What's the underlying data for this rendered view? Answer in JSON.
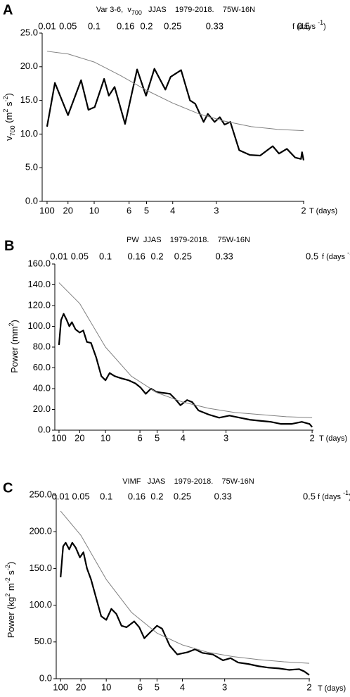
{
  "chart_data": [
    {
      "type": "line",
      "panel_label": "A",
      "title": [
        "Var 3-6,  v",
        "700",
        "   JJAS    1979-2018.    75W-16N"
      ],
      "y_label": [
        "v",
        "700",
        " (m",
        "2",
        " s",
        "-2",
        ")"
      ],
      "x_label": [
        "f (days ",
        "-1",
        ")"
      ],
      "x2_label": "T (days)",
      "xlim": [
        0,
        0.5
      ],
      "xticks": [
        0.01,
        0.05,
        0.1,
        0.16,
        0.2,
        0.25,
        0.33,
        0.5
      ],
      "x2ticks": [
        100,
        20,
        10,
        6,
        5,
        4,
        3,
        2
      ],
      "x2_scale": "reciprocal",
      "ylim": [
        0,
        25
      ],
      "yticks": [
        {
          "value": 0,
          "label": "0.0"
        },
        {
          "value": 5,
          "label": "5.0"
        },
        {
          "value": 10,
          "label": "10.0"
        },
        {
          "value": 15,
          "label": "15.0"
        },
        {
          "value": 20,
          "label": "20.0"
        },
        {
          "value": 25,
          "label": "25.0"
        }
      ],
      "series": [
        {
          "color": "#000000",
          "line_width": 2.2,
          "x": [
            0.01,
            0.025,
            0.05,
            0.075,
            0.089,
            0.101,
            0.119,
            0.128,
            0.139,
            0.159,
            0.182,
            0.199,
            0.215,
            0.236,
            0.246,
            0.266,
            0.283,
            0.293,
            0.309,
            0.317,
            0.33,
            0.34,
            0.349,
            0.36,
            0.377,
            0.397,
            0.417,
            0.441,
            0.453,
            0.468,
            0.484,
            0.495,
            0.497,
            0.5
          ],
          "values": [
            11.1,
            17.6,
            12.8,
            18.0,
            13.6,
            14.0,
            18.2,
            15.7,
            17.0,
            11.5,
            19.6,
            15.7,
            19.7,
            16.6,
            18.5,
            19.5,
            15.0,
            14.5,
            11.8,
            13.0,
            11.8,
            12.5,
            11.4,
            11.8,
            7.6,
            6.9,
            6.8,
            8.2,
            7.1,
            7.8,
            6.5,
            6.3,
            7.3,
            6.1
          ]
        },
        {
          "color": "#808080",
          "line_width": 1,
          "x": [
            0.01,
            0.05,
            0.1,
            0.15,
            0.2,
            0.25,
            0.3,
            0.35,
            0.4,
            0.45,
            0.5
          ],
          "values": [
            22.3,
            21.9,
            20.7,
            18.7,
            16.5,
            14.6,
            13.0,
            11.9,
            11.1,
            10.7,
            10.5
          ]
        }
      ]
    },
    {
      "type": "line",
      "panel_label": "B",
      "title": [
        "PW  JJAS    1979-2018.    75W-16N"
      ],
      "y_label": [
        "Power (mm",
        "2",
        ")"
      ],
      "x_label": [
        "f (days ",
        "-1",
        ")"
      ],
      "x2_label": "T (days)",
      "xlim": [
        0,
        0.5
      ],
      "xticks": [
        0.01,
        0.05,
        0.1,
        0.16,
        0.2,
        0.25,
        0.33,
        0.5
      ],
      "x2ticks": [
        100,
        20,
        10,
        6,
        5,
        4,
        3,
        2
      ],
      "x2_scale": "reciprocal",
      "ylim": [
        0,
        160
      ],
      "yticks": [
        {
          "value": 0,
          "label": "0.0"
        },
        {
          "value": 20,
          "label": "20.0"
        },
        {
          "value": 40,
          "label": "40.0"
        },
        {
          "value": 60,
          "label": "60.0"
        },
        {
          "value": 80,
          "label": "80.0"
        },
        {
          "value": 100,
          "label": "100.0"
        },
        {
          "value": 120,
          "label": "120.0"
        },
        {
          "value": 140,
          "label": "140.0"
        },
        {
          "value": 160,
          "label": "160.0"
        }
      ],
      "series": [
        {
          "color": "#000000",
          "line_width": 2.2,
          "x": [
            0.01,
            0.014,
            0.019,
            0.025,
            0.03,
            0.035,
            0.042,
            0.05,
            0.057,
            0.064,
            0.072,
            0.082,
            0.092,
            0.1,
            0.108,
            0.118,
            0.13,
            0.145,
            0.158,
            0.168,
            0.178,
            0.188,
            0.198,
            0.21,
            0.225,
            0.235,
            0.245,
            0.258,
            0.268,
            0.28,
            0.3,
            0.32,
            0.34,
            0.36,
            0.38,
            0.4,
            0.42,
            0.44,
            0.46,
            0.48,
            0.495,
            0.5
          ],
          "values": [
            82,
            106,
            112,
            106,
            100,
            104,
            97,
            94,
            96,
            85,
            84,
            70,
            52,
            48,
            55,
            52,
            50,
            48,
            45,
            41,
            35,
            40,
            37,
            36,
            35,
            30,
            24,
            29,
            27,
            19,
            15,
            12,
            14,
            12,
            10,
            9,
            8,
            6,
            6,
            8,
            6,
            3
          ]
        },
        {
          "color": "#808080",
          "line_width": 1,
          "x": [
            0.01,
            0.05,
            0.1,
            0.15,
            0.2,
            0.25,
            0.3,
            0.35,
            0.4,
            0.45,
            0.5
          ],
          "values": [
            142,
            122,
            80,
            52,
            36,
            27,
            21,
            17,
            15,
            13,
            12
          ]
        }
      ]
    },
    {
      "type": "line",
      "panel_label": "C",
      "title": [
        "VIMF   JJAS    1979-2018.    75W-16N"
      ],
      "y_label": [
        "Power (kg",
        "2",
        " m",
        "-2",
        " s",
        "-2",
        ")"
      ],
      "x_label": [
        "f (days ",
        "-1",
        ")"
      ],
      "x2_label": "T (days)",
      "xlim": [
        0,
        0.5
      ],
      "xticks": [
        0.01,
        0.05,
        0.1,
        0.16,
        0.2,
        0.25,
        0.33,
        0.5
      ],
      "x2ticks": [
        100,
        20,
        10,
        6,
        5,
        4,
        3,
        2
      ],
      "x2_scale": "reciprocal",
      "ylim": [
        0,
        250
      ],
      "yticks": [
        {
          "value": 0,
          "label": "0.0"
        },
        {
          "value": 50,
          "label": "50.0"
        },
        {
          "value": 100,
          "label": "100.0"
        },
        {
          "value": 150,
          "label": "150.0"
        },
        {
          "value": 200,
          "label": "200.0"
        },
        {
          "value": 250,
          "label": "250.0"
        }
      ],
      "series": [
        {
          "color": "#000000",
          "line_width": 2.2,
          "x": [
            0.01,
            0.015,
            0.02,
            0.027,
            0.033,
            0.04,
            0.048,
            0.055,
            0.062,
            0.07,
            0.08,
            0.09,
            0.1,
            0.11,
            0.12,
            0.13,
            0.14,
            0.155,
            0.165,
            0.175,
            0.185,
            0.2,
            0.21,
            0.225,
            0.24,
            0.26,
            0.275,
            0.29,
            0.31,
            0.33,
            0.345,
            0.36,
            0.38,
            0.4,
            0.42,
            0.44,
            0.46,
            0.48,
            0.49,
            0.5
          ],
          "values": [
            138,
            180,
            185,
            176,
            185,
            178,
            165,
            172,
            150,
            135,
            110,
            85,
            80,
            95,
            88,
            72,
            70,
            78,
            70,
            55,
            62,
            72,
            68,
            45,
            33,
            36,
            40,
            35,
            33,
            25,
            28,
            22,
            20,
            17,
            15,
            14,
            12,
            13,
            10,
            5
          ]
        },
        {
          "color": "#808080",
          "line_width": 1,
          "x": [
            0.01,
            0.05,
            0.1,
            0.15,
            0.2,
            0.25,
            0.3,
            0.35,
            0.4,
            0.45,
            0.5
          ],
          "values": [
            228,
            195,
            135,
            90,
            62,
            46,
            36,
            30,
            26,
            23,
            21
          ]
        }
      ]
    }
  ]
}
